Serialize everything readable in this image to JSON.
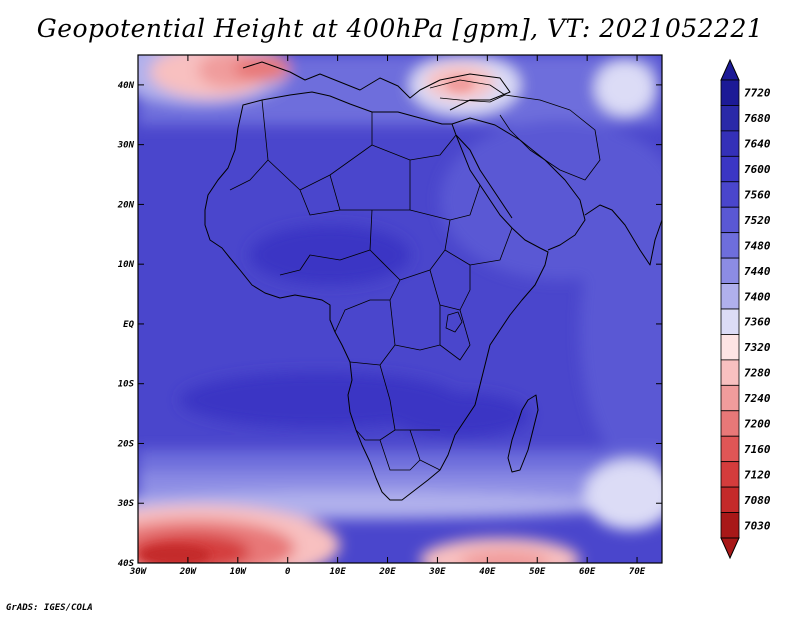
{
  "title": "Geopotential Height at 400hPa [gpm], VT: 2021052221",
  "credit": "GrADS: IGES/COLA",
  "map": {
    "region": "Africa",
    "lon_range": [
      -30,
      75
    ],
    "lat_range": [
      -40,
      45
    ],
    "lon_ticks": [
      "30W",
      "20W",
      "10W",
      "0",
      "10E",
      "20E",
      "30E",
      "40E",
      "50E",
      "60E",
      "70E"
    ],
    "lat_ticks": [
      "40N",
      "30N",
      "20N",
      "10N",
      "EQ",
      "10S",
      "20S",
      "30S",
      "40S"
    ],
    "features": [
      {
        "name": "north-atlantic-trough",
        "lon": -12,
        "lat": 42,
        "min_gpm": 7200
      },
      {
        "name": "anatolia-trough",
        "lon": 35,
        "lat": 40,
        "min_gpm": 7360
      },
      {
        "name": "south-atlantic-trough",
        "lon": -12,
        "lat": -38,
        "min_gpm": 7080
      },
      {
        "name": "south-indian-trough",
        "lon": 48,
        "lat": -40,
        "min_gpm": 7280
      }
    ]
  },
  "colorbar": {
    "levels": [
      "7720",
      "7680",
      "7640",
      "7600",
      "7560",
      "7520",
      "7480",
      "7440",
      "7400",
      "7360",
      "7320",
      "7280",
      "7240",
      "7200",
      "7160",
      "7120",
      "7080",
      "7030"
    ],
    "colors": [
      "#1c1a96",
      "#2a29a8",
      "#3430b8",
      "#3b36c4",
      "#4a46cc",
      "#5a58d4",
      "#6e6edc",
      "#8c8ce4",
      "#b0b0ec",
      "#dcdcf6",
      "#fde4e4",
      "#f8c0c0",
      "#f09c9c",
      "#e87878",
      "#e05656",
      "#d43c3c",
      "#c42a2a",
      "#a81818"
    ]
  }
}
